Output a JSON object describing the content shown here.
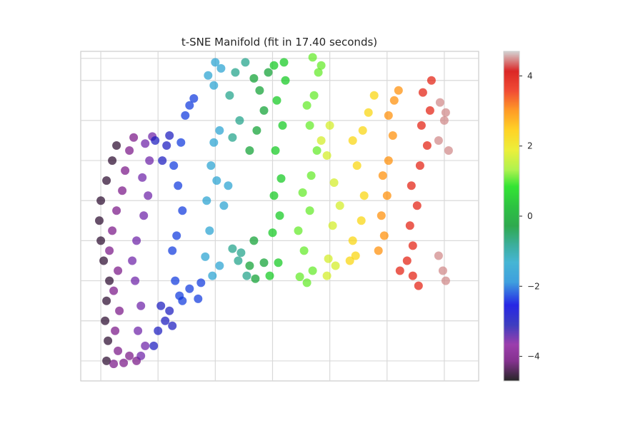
{
  "chart_data": {
    "type": "scatter",
    "title": "t-SNE Manifold (fit in 17.40 seconds)",
    "xlabel": "",
    "ylabel": "",
    "x_ticks_labeled": false,
    "y_ticks_labeled": false,
    "grid": true,
    "colorbar": {
      "colormap": "nipy_spectral",
      "range": [
        -4.7,
        4.7
      ],
      "ticks": [
        4,
        2,
        0,
        -2,
        -4
      ],
      "tick_labels": [
        "4",
        "2",
        "0",
        "−2",
        "−4"
      ]
    },
    "marker_alpha": 0.7,
    "clusters": [
      {
        "value": -4.5,
        "points": [
          [
            -8.4,
            -12
          ],
          [
            -8.3,
            -10
          ],
          [
            -8.5,
            -8
          ],
          [
            -8.4,
            -6
          ],
          [
            -8.2,
            -4
          ],
          [
            -8.6,
            -2
          ],
          [
            -8.8,
            0
          ],
          [
            -8.9,
            2
          ],
          [
            -8.8,
            4
          ],
          [
            -8.4,
            6
          ],
          [
            -8.0,
            8
          ],
          [
            -7.7,
            9.5
          ]
        ]
      },
      {
        "value": -4.0,
        "points": [
          [
            -7.9,
            -12.3
          ],
          [
            -7.6,
            -11
          ],
          [
            -7.8,
            -9
          ],
          [
            -7.5,
            -7
          ],
          [
            -7.9,
            -5
          ],
          [
            -7.6,
            -3
          ],
          [
            -8.2,
            -1
          ],
          [
            -8.0,
            1
          ],
          [
            -7.7,
            3
          ],
          [
            -7.3,
            5
          ],
          [
            -7.1,
            7
          ],
          [
            -6.8,
            9
          ],
          [
            -6.5,
            10.3
          ],
          [
            -6.8,
            -11.5
          ],
          [
            -6.3,
            -12
          ],
          [
            -7.2,
            -12.2
          ]
        ]
      },
      {
        "value": -3.5,
        "points": [
          [
            -6.0,
            -11.5
          ],
          [
            -5.7,
            -10.5
          ],
          [
            -6.2,
            -9
          ],
          [
            -6.0,
            -6.5
          ],
          [
            -6.4,
            -4
          ],
          [
            -6.6,
            -2
          ],
          [
            -6.3,
            0
          ],
          [
            -5.8,
            2.5
          ],
          [
            -5.5,
            4.5
          ],
          [
            -5.9,
            6.3
          ],
          [
            -5.4,
            8
          ],
          [
            -5.7,
            9.7
          ],
          [
            -5.2,
            10.4
          ]
        ]
      },
      {
        "value": -3.0,
        "points": [
          [
            -5.1,
            -10.5
          ],
          [
            -4.8,
            -9
          ],
          [
            -4.3,
            -8
          ],
          [
            -4.6,
            -6.5
          ],
          [
            -4.0,
            -7
          ],
          [
            -3.8,
            -8.5
          ],
          [
            -4.5,
            8
          ],
          [
            -4.2,
            9.5
          ],
          [
            -4.0,
            10.5
          ],
          [
            -5.0,
            10
          ]
        ]
      },
      {
        "value": -2.3,
        "points": [
          [
            -3.3,
            -5.5
          ],
          [
            -3.6,
            -4
          ],
          [
            -3.8,
            -1
          ],
          [
            -3.5,
            0.5
          ],
          [
            -3.1,
            3.0
          ],
          [
            -3.4,
            5.5
          ],
          [
            -3.7,
            7.5
          ],
          [
            -3.2,
            9.8
          ],
          [
            -2.9,
            12.5
          ],
          [
            -2.6,
            13.5
          ],
          [
            -2.3,
            14.2
          ],
          [
            -3.1,
            -6
          ],
          [
            -2.6,
            -4.8
          ],
          [
            -2.0,
            -5.8
          ],
          [
            -1.8,
            -4.2
          ]
        ]
      },
      {
        "value": -1.5,
        "points": [
          [
            -1.5,
            -1.6
          ],
          [
            -1.0,
            -3.5
          ],
          [
            -0.5,
            -2.5
          ],
          [
            -1.2,
            1
          ],
          [
            -1.4,
            4
          ],
          [
            -0.7,
            6
          ],
          [
            -1.1,
            7.5
          ],
          [
            -0.9,
            9.8
          ],
          [
            -0.5,
            11
          ],
          [
            -1.3,
            16.5
          ],
          [
            -0.8,
            17.8
          ],
          [
            -0.4,
            17.2
          ],
          [
            -0.9,
            15.5
          ],
          [
            0.1,
            5.5
          ],
          [
            -0.2,
            3.5
          ]
        ]
      },
      {
        "value": -0.8,
        "points": [
          [
            0.4,
            -0.8
          ],
          [
            0.8,
            -2.0
          ],
          [
            1.4,
            -3.5
          ],
          [
            1.0,
            -1.2
          ],
          [
            0.4,
            10.3
          ],
          [
            0.9,
            12
          ],
          [
            0.2,
            14.5
          ],
          [
            0.6,
            16.8
          ],
          [
            1.3,
            17.8
          ]
        ]
      },
      {
        "value": -0.2,
        "points": [
          [
            1.6,
            -2.5
          ],
          [
            2.0,
            -3.8
          ],
          [
            2.6,
            -2.2
          ],
          [
            1.9,
            0
          ],
          [
            1.6,
            9
          ],
          [
            2.1,
            11
          ],
          [
            2.6,
            13
          ],
          [
            2.3,
            15
          ],
          [
            2.9,
            16.8
          ],
          [
            1.9,
            16.2
          ]
        ]
      },
      {
        "value": 0.5,
        "points": [
          [
            3.0,
            -3.5
          ],
          [
            3.6,
            -2.2
          ],
          [
            3.2,
            0.8
          ],
          [
            3.7,
            2.5
          ],
          [
            3.3,
            4.5
          ],
          [
            3.8,
            6.2
          ],
          [
            3.4,
            9
          ],
          [
            3.9,
            11.5
          ],
          [
            3.5,
            14
          ],
          [
            4.1,
            16
          ],
          [
            3.3,
            17.5
          ],
          [
            4.0,
            17.8
          ]
        ]
      },
      {
        "value": 1.1,
        "points": [
          [
            5.6,
            -4.2
          ],
          [
            5.1,
            -3.6
          ],
          [
            6.0,
            -3.0
          ],
          [
            5.4,
            -1.0
          ],
          [
            5.0,
            1.0
          ],
          [
            5.8,
            3.0
          ],
          [
            5.3,
            4.8
          ],
          [
            5.9,
            6.5
          ],
          [
            6.3,
            9.0
          ],
          [
            5.8,
            11.5
          ],
          [
            6.1,
            14.5
          ],
          [
            5.6,
            13.5
          ],
          [
            6.4,
            16.8
          ],
          [
            6.0,
            18.3
          ],
          [
            6.6,
            17.5
          ]
        ]
      },
      {
        "value": 1.7,
        "points": [
          [
            7.0,
            -3.5
          ],
          [
            7.6,
            -2.5
          ],
          [
            7.1,
            -1.8
          ],
          [
            7.4,
            1.5
          ],
          [
            7.9,
            3.5
          ],
          [
            7.5,
            5.8
          ],
          [
            7.0,
            8.5
          ],
          [
            6.6,
            10.0
          ],
          [
            7.2,
            11.5
          ]
        ]
      },
      {
        "value": 2.3,
        "points": [
          [
            8.6,
            -2.0
          ],
          [
            9.0,
            -1.5
          ],
          [
            8.8,
            0
          ],
          [
            9.4,
            2.0
          ],
          [
            9.6,
            4.5
          ],
          [
            9.1,
            7.5
          ],
          [
            8.8,
            10.0
          ],
          [
            9.5,
            11.0
          ],
          [
            9.9,
            12.8
          ],
          [
            10.3,
            14.5
          ]
        ]
      },
      {
        "value": 3.0,
        "points": [
          [
            10.6,
            -1.0
          ],
          [
            11.0,
            0.5
          ],
          [
            10.8,
            2.5
          ],
          [
            11.2,
            4.5
          ],
          [
            10.9,
            6.5
          ],
          [
            11.3,
            8.0
          ],
          [
            11.6,
            10.5
          ],
          [
            11.3,
            12.5
          ],
          [
            11.7,
            14.0
          ],
          [
            12.0,
            15.0
          ]
        ]
      },
      {
        "value": 3.8,
        "points": [
          [
            12.1,
            -3.0
          ],
          [
            12.6,
            -2.0
          ],
          [
            13.0,
            -3.5
          ],
          [
            13.4,
            -4.5
          ],
          [
            13.0,
            -0.5
          ],
          [
            12.8,
            1.5
          ],
          [
            13.3,
            3.5
          ],
          [
            12.9,
            5.5
          ],
          [
            13.5,
            7.5
          ],
          [
            14.0,
            9.5
          ],
          [
            13.6,
            11.5
          ],
          [
            14.2,
            13.0
          ],
          [
            13.7,
            14.8
          ],
          [
            14.3,
            16.0
          ]
        ]
      },
      {
        "value": 4.5,
        "points": [
          [
            14.8,
            -1.5
          ],
          [
            15.1,
            -3.0
          ],
          [
            15.3,
            -4.0
          ],
          [
            14.8,
            10.0
          ],
          [
            15.2,
            12.0
          ],
          [
            15.5,
            9.0
          ],
          [
            15.3,
            12.8
          ],
          [
            14.9,
            13.8
          ]
        ]
      }
    ]
  }
}
